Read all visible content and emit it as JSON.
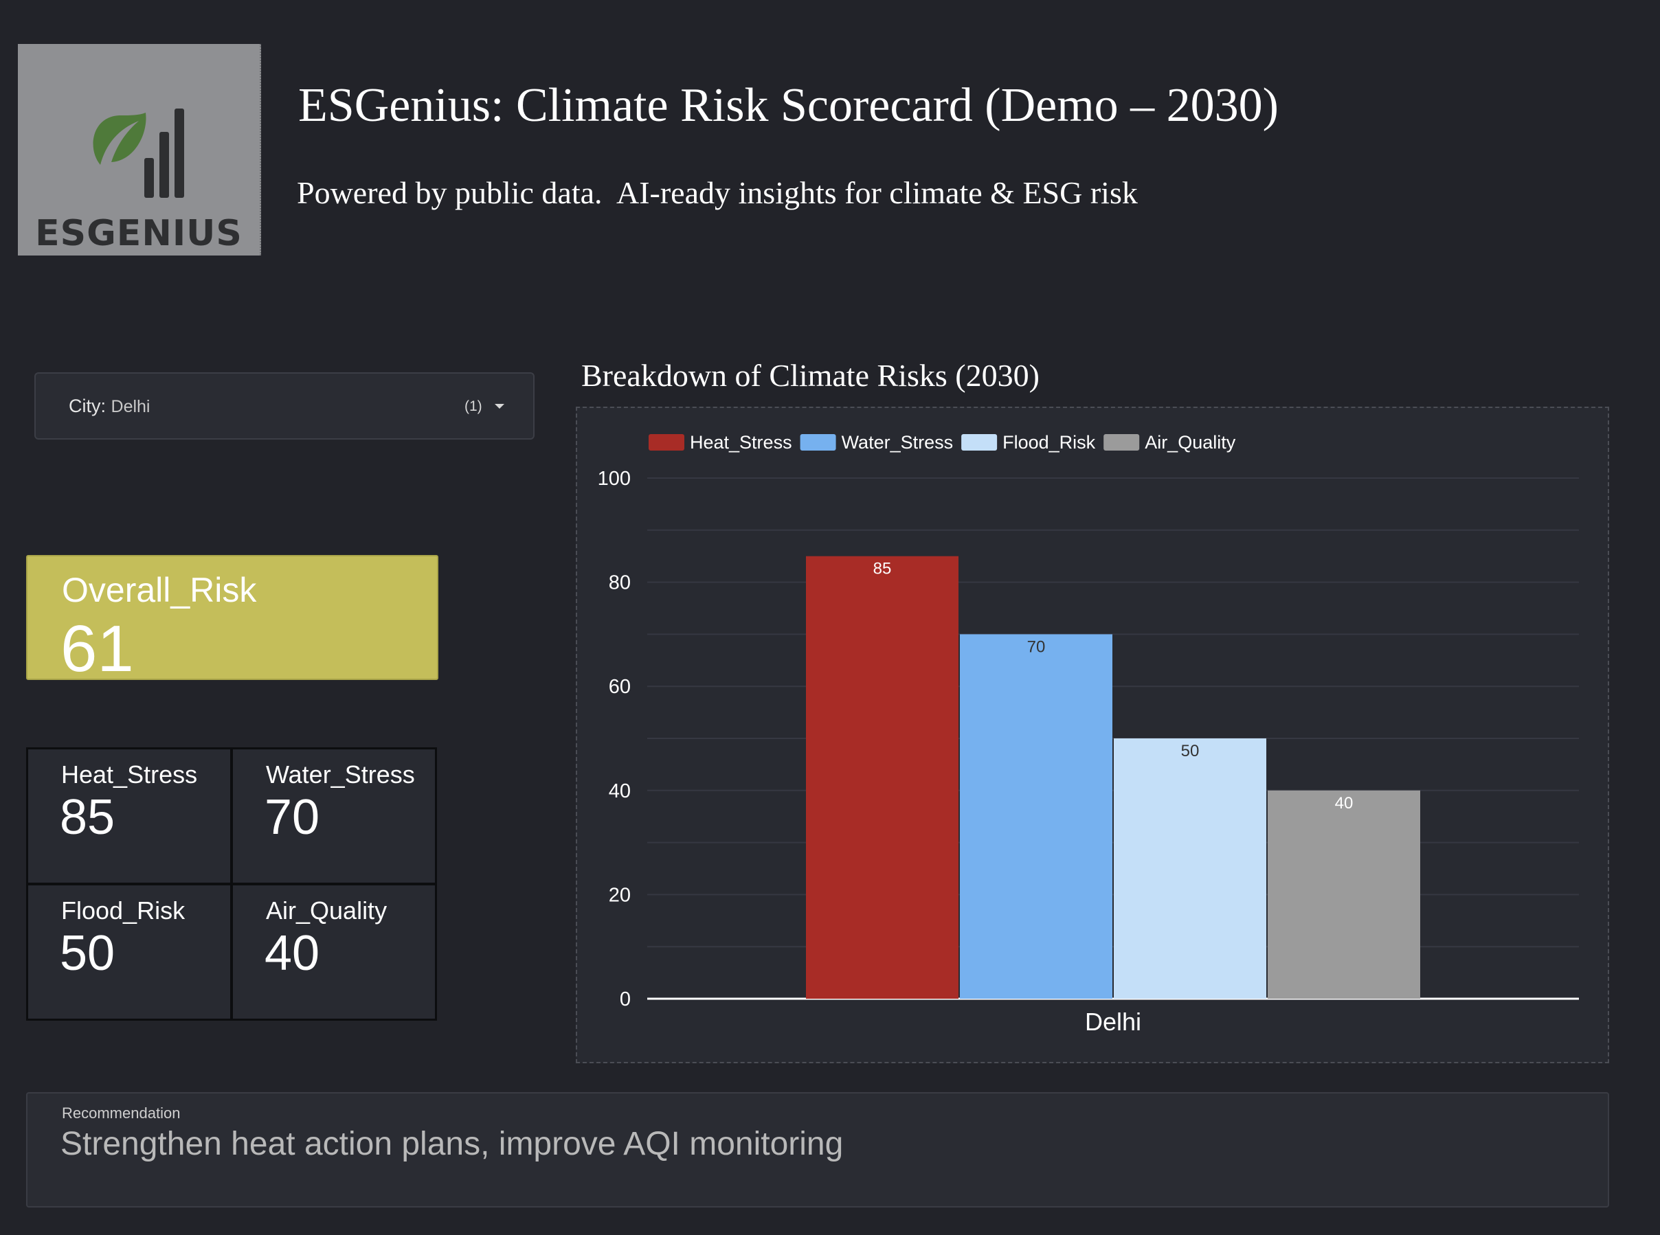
{
  "logo": {
    "text": "ESGENIUS",
    "icon": "leaf-bars-logo-icon",
    "leaf_color": "#4f7a3a",
    "bar_color": "#2e2f31"
  },
  "header": {
    "title": "ESGenius: Climate Risk Scorecard (Demo – 2030)",
    "subtitle": "Powered by public data.  AI-ready insights for climate & ESG risk"
  },
  "filter": {
    "label": "City:",
    "value": "Delhi",
    "count": "(1)",
    "icon": "chevron-down-icon"
  },
  "overall": {
    "label": "Overall_Risk",
    "value": "61",
    "color": "#c4be5a"
  },
  "metrics": [
    {
      "label": "Heat_Stress",
      "value": "85"
    },
    {
      "label": "Water_Stress",
      "value": "70"
    },
    {
      "label": "Flood_Risk",
      "value": "50"
    },
    {
      "label": "Air_Quality",
      "value": "40"
    }
  ],
  "chart_title": "Breakdown of Climate Risks (2030)",
  "chart_data": {
    "type": "bar",
    "categories": [
      "Delhi"
    ],
    "series": [
      {
        "name": "Heat_Stress",
        "values": [
          85
        ],
        "color": "#a82c26"
      },
      {
        "name": "Water_Stress",
        "values": [
          70
        ],
        "color": "#76b1ef"
      },
      {
        "name": "Flood_Risk",
        "values": [
          50
        ],
        "color": "#c4dff8"
      },
      {
        "name": "Air_Quality",
        "values": [
          40
        ],
        "color": "#9b9b9b"
      }
    ],
    "yticks": [
      "0",
      "20",
      "40",
      "60",
      "80",
      "100"
    ],
    "ylim": [
      0,
      100
    ],
    "legend": "top-left",
    "grid": true,
    "data_labels": true
  },
  "recommendation": {
    "label": "Recommendation",
    "text": "Strengthen heat action plans, improve AQI monitoring"
  }
}
